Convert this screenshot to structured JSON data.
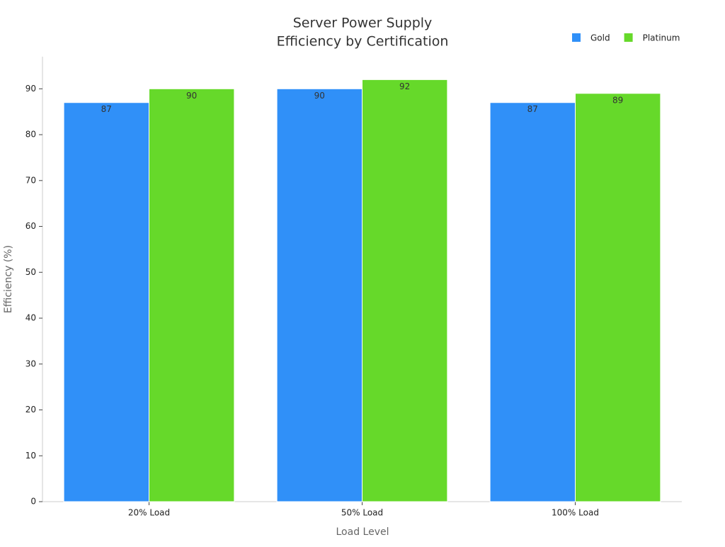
{
  "chart_data": {
    "type": "bar",
    "title": [
      "Server Power Supply",
      "Efficiency by Certification"
    ],
    "x_label": "Load Level",
    "y_label": "Efficiency (%)",
    "categories": [
      "20% Load",
      "50% Load",
      "100% Load"
    ],
    "series": [
      {
        "name": "Gold",
        "color": "#3090f8",
        "values": [
          87,
          90,
          87
        ]
      },
      {
        "name": "Platinum",
        "color": "#66d92a",
        "values": [
          90,
          92,
          89
        ]
      }
    ],
    "ylim": [
      0,
      97
    ],
    "yticks": [
      0,
      10,
      20,
      30,
      40,
      50,
      60,
      70,
      80,
      90
    ],
    "grid": false,
    "legend": "top-right"
  }
}
